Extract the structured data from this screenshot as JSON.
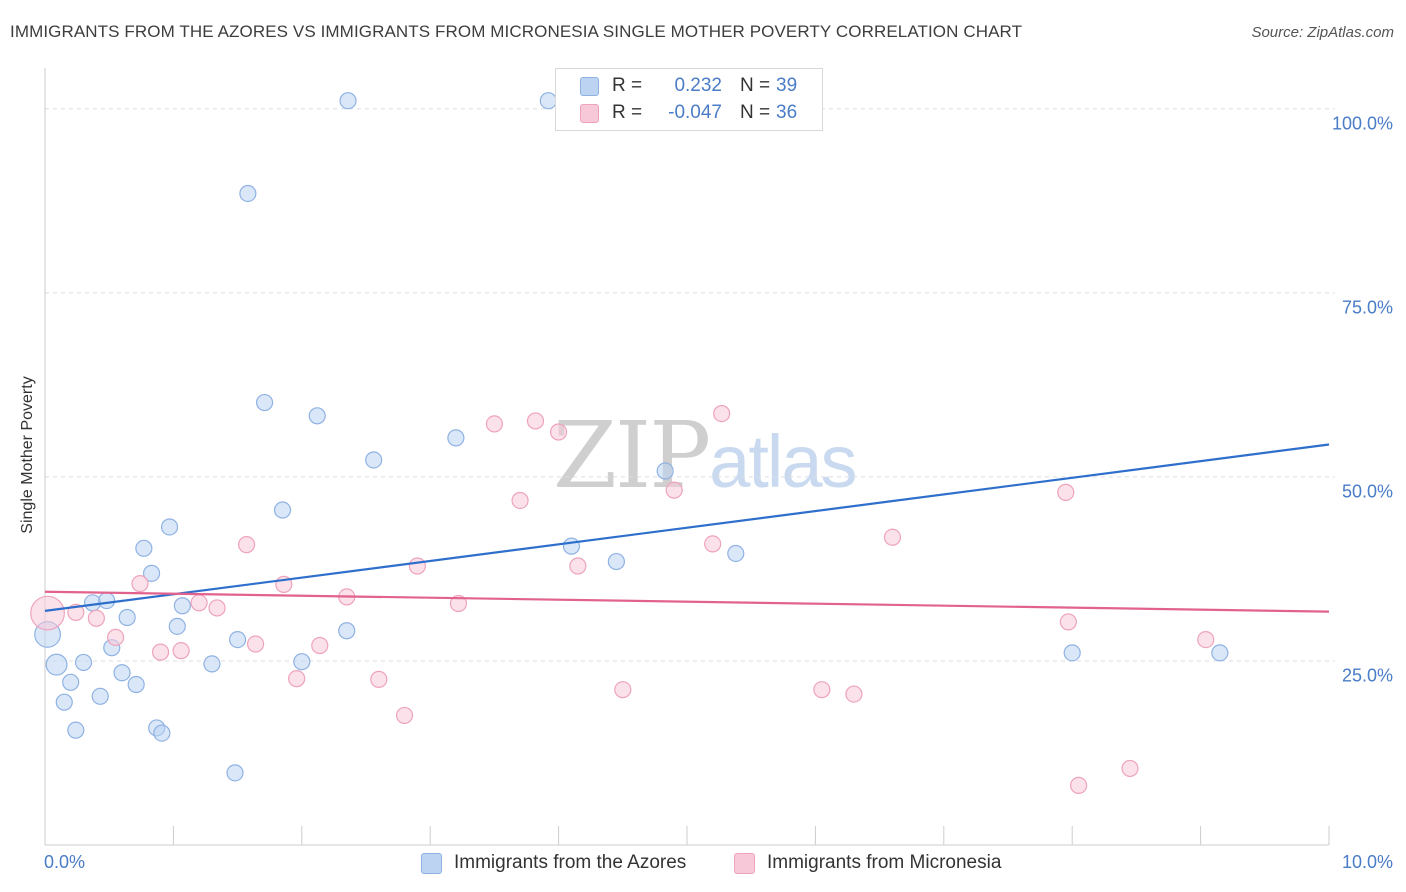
{
  "header": {
    "title": "IMMIGRANTS FROM THE AZORES VS IMMIGRANTS FROM MICRONESIA SINGLE MOTHER POVERTY CORRELATION CHART",
    "source": "Source: ZipAtlas.com"
  },
  "watermark": {
    "zip": "ZIP",
    "atlas": "atlas"
  },
  "legend": {
    "r_label": "R =",
    "n_label": "N =",
    "series": [
      {
        "r": "0.232",
        "n": "39"
      },
      {
        "r": "-0.047",
        "n": "36"
      }
    ]
  },
  "colors": {
    "azores_fill": "#bcd3f2",
    "azores_stroke": "#8fb2e3",
    "azores_line": "#2f6fcc",
    "micronesia_fill": "#f7c9d8",
    "micronesia_stroke": "#eea3bb",
    "micronesia_line": "#e2628e",
    "grid": "#dddddd",
    "tick_text": "#4a7cc7"
  },
  "chart_data": {
    "type": "scatter",
    "title": "IMMIGRANTS FROM THE AZORES VS IMMIGRANTS FROM MICRONESIA SINGLE MOTHER POVERTY CORRELATION CHART",
    "xlabel": "",
    "ylabel": "Single Mother Poverty",
    "xlim": [
      0,
      10
    ],
    "ylim": [
      0,
      105
    ],
    "x_tick_labels": [
      "0.0%",
      "10.0%"
    ],
    "y_ticks": [
      25,
      50,
      75,
      100
    ],
    "y_tick_labels": [
      "25.0%",
      "50.0%",
      "75.0%",
      "100.0%"
    ],
    "grid": true,
    "legend_placement": "top-center",
    "series": [
      {
        "name": "Immigrants from the Azores",
        "r": 0.232,
        "n": 39,
        "trend": {
          "x": [
            0,
            10
          ],
          "y": [
            31.8,
            54.4
          ]
        },
        "points": [
          {
            "x": 0.02,
            "y": 28.6,
            "s": 1.6
          },
          {
            "x": 0.09,
            "y": 24.5,
            "s": 1.3
          },
          {
            "x": 0.15,
            "y": 19.4
          },
          {
            "x": 0.2,
            "y": 22.1
          },
          {
            "x": 0.24,
            "y": 15.6
          },
          {
            "x": 0.3,
            "y": 24.8
          },
          {
            "x": 0.37,
            "y": 32.9
          },
          {
            "x": 0.43,
            "y": 20.2
          },
          {
            "x": 0.48,
            "y": 33.2
          },
          {
            "x": 0.52,
            "y": 26.8
          },
          {
            "x": 0.6,
            "y": 23.4
          },
          {
            "x": 0.64,
            "y": 30.9
          },
          {
            "x": 0.71,
            "y": 21.8
          },
          {
            "x": 0.77,
            "y": 40.3
          },
          {
            "x": 0.83,
            "y": 36.9
          },
          {
            "x": 0.87,
            "y": 15.9
          },
          {
            "x": 0.91,
            "y": 15.2
          },
          {
            "x": 0.97,
            "y": 43.2
          },
          {
            "x": 1.03,
            "y": 29.7
          },
          {
            "x": 1.07,
            "y": 32.5
          },
          {
            "x": 1.3,
            "y": 24.6
          },
          {
            "x": 1.48,
            "y": 9.8
          },
          {
            "x": 1.5,
            "y": 27.9
          },
          {
            "x": 1.58,
            "y": 88.5
          },
          {
            "x": 1.71,
            "y": 60.1
          },
          {
            "x": 1.85,
            "y": 45.5
          },
          {
            "x": 2.0,
            "y": 24.9
          },
          {
            "x": 2.12,
            "y": 58.3
          },
          {
            "x": 2.35,
            "y": 29.1
          },
          {
            "x": 2.36,
            "y": 101.1
          },
          {
            "x": 2.56,
            "y": 52.3
          },
          {
            "x": 3.2,
            "y": 55.3
          },
          {
            "x": 3.92,
            "y": 101.1
          },
          {
            "x": 4.1,
            "y": 40.6
          },
          {
            "x": 4.45,
            "y": 38.5
          },
          {
            "x": 4.83,
            "y": 50.8
          },
          {
            "x": 5.38,
            "y": 39.6
          },
          {
            "x": 8.0,
            "y": 26.1
          },
          {
            "x": 9.15,
            "y": 26.1
          }
        ]
      },
      {
        "name": "Immigrants from Micronesia",
        "r": -0.047,
        "n": 36,
        "trend": {
          "x": [
            0,
            10
          ],
          "y": [
            34.4,
            31.7
          ]
        },
        "points": [
          {
            "x": 0.02,
            "y": 31.5,
            "s": 2.1
          },
          {
            "x": 0.24,
            "y": 31.6
          },
          {
            "x": 0.4,
            "y": 30.8
          },
          {
            "x": 0.55,
            "y": 28.2
          },
          {
            "x": 0.74,
            "y": 35.5
          },
          {
            "x": 0.9,
            "y": 26.2
          },
          {
            "x": 1.06,
            "y": 26.4
          },
          {
            "x": 1.2,
            "y": 32.9
          },
          {
            "x": 1.34,
            "y": 32.2
          },
          {
            "x": 1.57,
            "y": 40.8
          },
          {
            "x": 1.64,
            "y": 27.3
          },
          {
            "x": 1.86,
            "y": 35.4
          },
          {
            "x": 1.96,
            "y": 22.6
          },
          {
            "x": 2.14,
            "y": 27.1
          },
          {
            "x": 2.35,
            "y": 33.7
          },
          {
            "x": 2.6,
            "y": 22.5
          },
          {
            "x": 2.8,
            "y": 17.6
          },
          {
            "x": 2.9,
            "y": 37.9
          },
          {
            "x": 3.22,
            "y": 32.8
          },
          {
            "x": 3.5,
            "y": 57.2
          },
          {
            "x": 3.7,
            "y": 46.8
          },
          {
            "x": 3.82,
            "y": 57.6
          },
          {
            "x": 4.0,
            "y": 56.1
          },
          {
            "x": 4.15,
            "y": 37.9
          },
          {
            "x": 4.5,
            "y": 21.1
          },
          {
            "x": 4.9,
            "y": 48.2
          },
          {
            "x": 5.2,
            "y": 40.9
          },
          {
            "x": 5.27,
            "y": 58.6
          },
          {
            "x": 6.05,
            "y": 21.1
          },
          {
            "x": 6.3,
            "y": 20.5
          },
          {
            "x": 6.6,
            "y": 41.8
          },
          {
            "x": 7.95,
            "y": 47.9
          },
          {
            "x": 7.97,
            "y": 30.3
          },
          {
            "x": 8.05,
            "y": 8.1
          },
          {
            "x": 8.45,
            "y": 10.4
          },
          {
            "x": 9.04,
            "y": 27.9
          }
        ]
      }
    ]
  }
}
